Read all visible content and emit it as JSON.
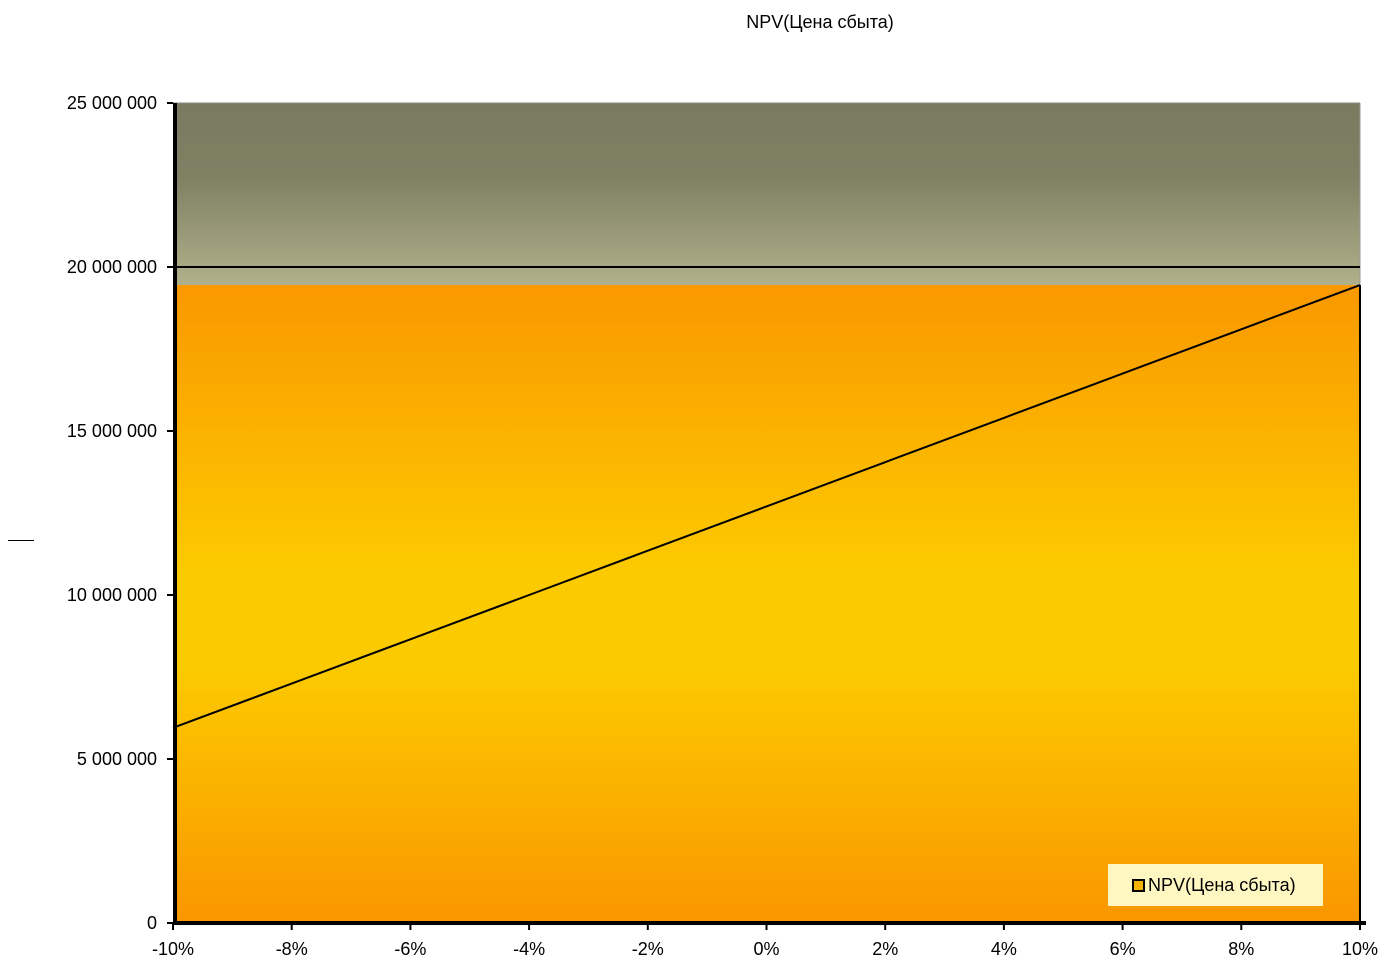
{
  "chart_data": {
    "type": "line",
    "title": "NPV(Цена сбыта)",
    "x": [
      -10,
      -8,
      -6,
      -4,
      -2,
      0,
      2,
      4,
      6,
      8,
      10
    ],
    "x_tick_labels": [
      "-10%",
      "-8%",
      "-6%",
      "-4%",
      "-2%",
      "0%",
      "2%",
      "4%",
      "6%",
      "8%",
      "10%"
    ],
    "y_tick_values": [
      0,
      5000000,
      10000000,
      15000000,
      20000000,
      25000000
    ],
    "y_tick_labels": [
      "0",
      "5 000 000",
      "10 000 000",
      "15 000 000",
      "20 000 000",
      "25 000 000"
    ],
    "ylim": [
      0,
      25000000
    ],
    "xlim": [
      -10,
      10
    ],
    "series": [
      {
        "name": "NPV(Цена сбыта)",
        "values": [
          5950000,
          7300000,
          8650000,
          10000000,
          11350000,
          12700000,
          14050000,
          15400000,
          16750000,
          18100000,
          19450000
        ]
      }
    ],
    "horizontal_line": 20000000,
    "legend_position": "bottom-right",
    "grid": false,
    "colors": {
      "plot_fill_top": "#fa9800",
      "plot_fill_mid": "#fcca00",
      "upper_band_top": "#7a7a60",
      "upper_band_bottom": "#b0b08a",
      "line": "#000000",
      "legend_bg": "#fff7c2"
    }
  }
}
